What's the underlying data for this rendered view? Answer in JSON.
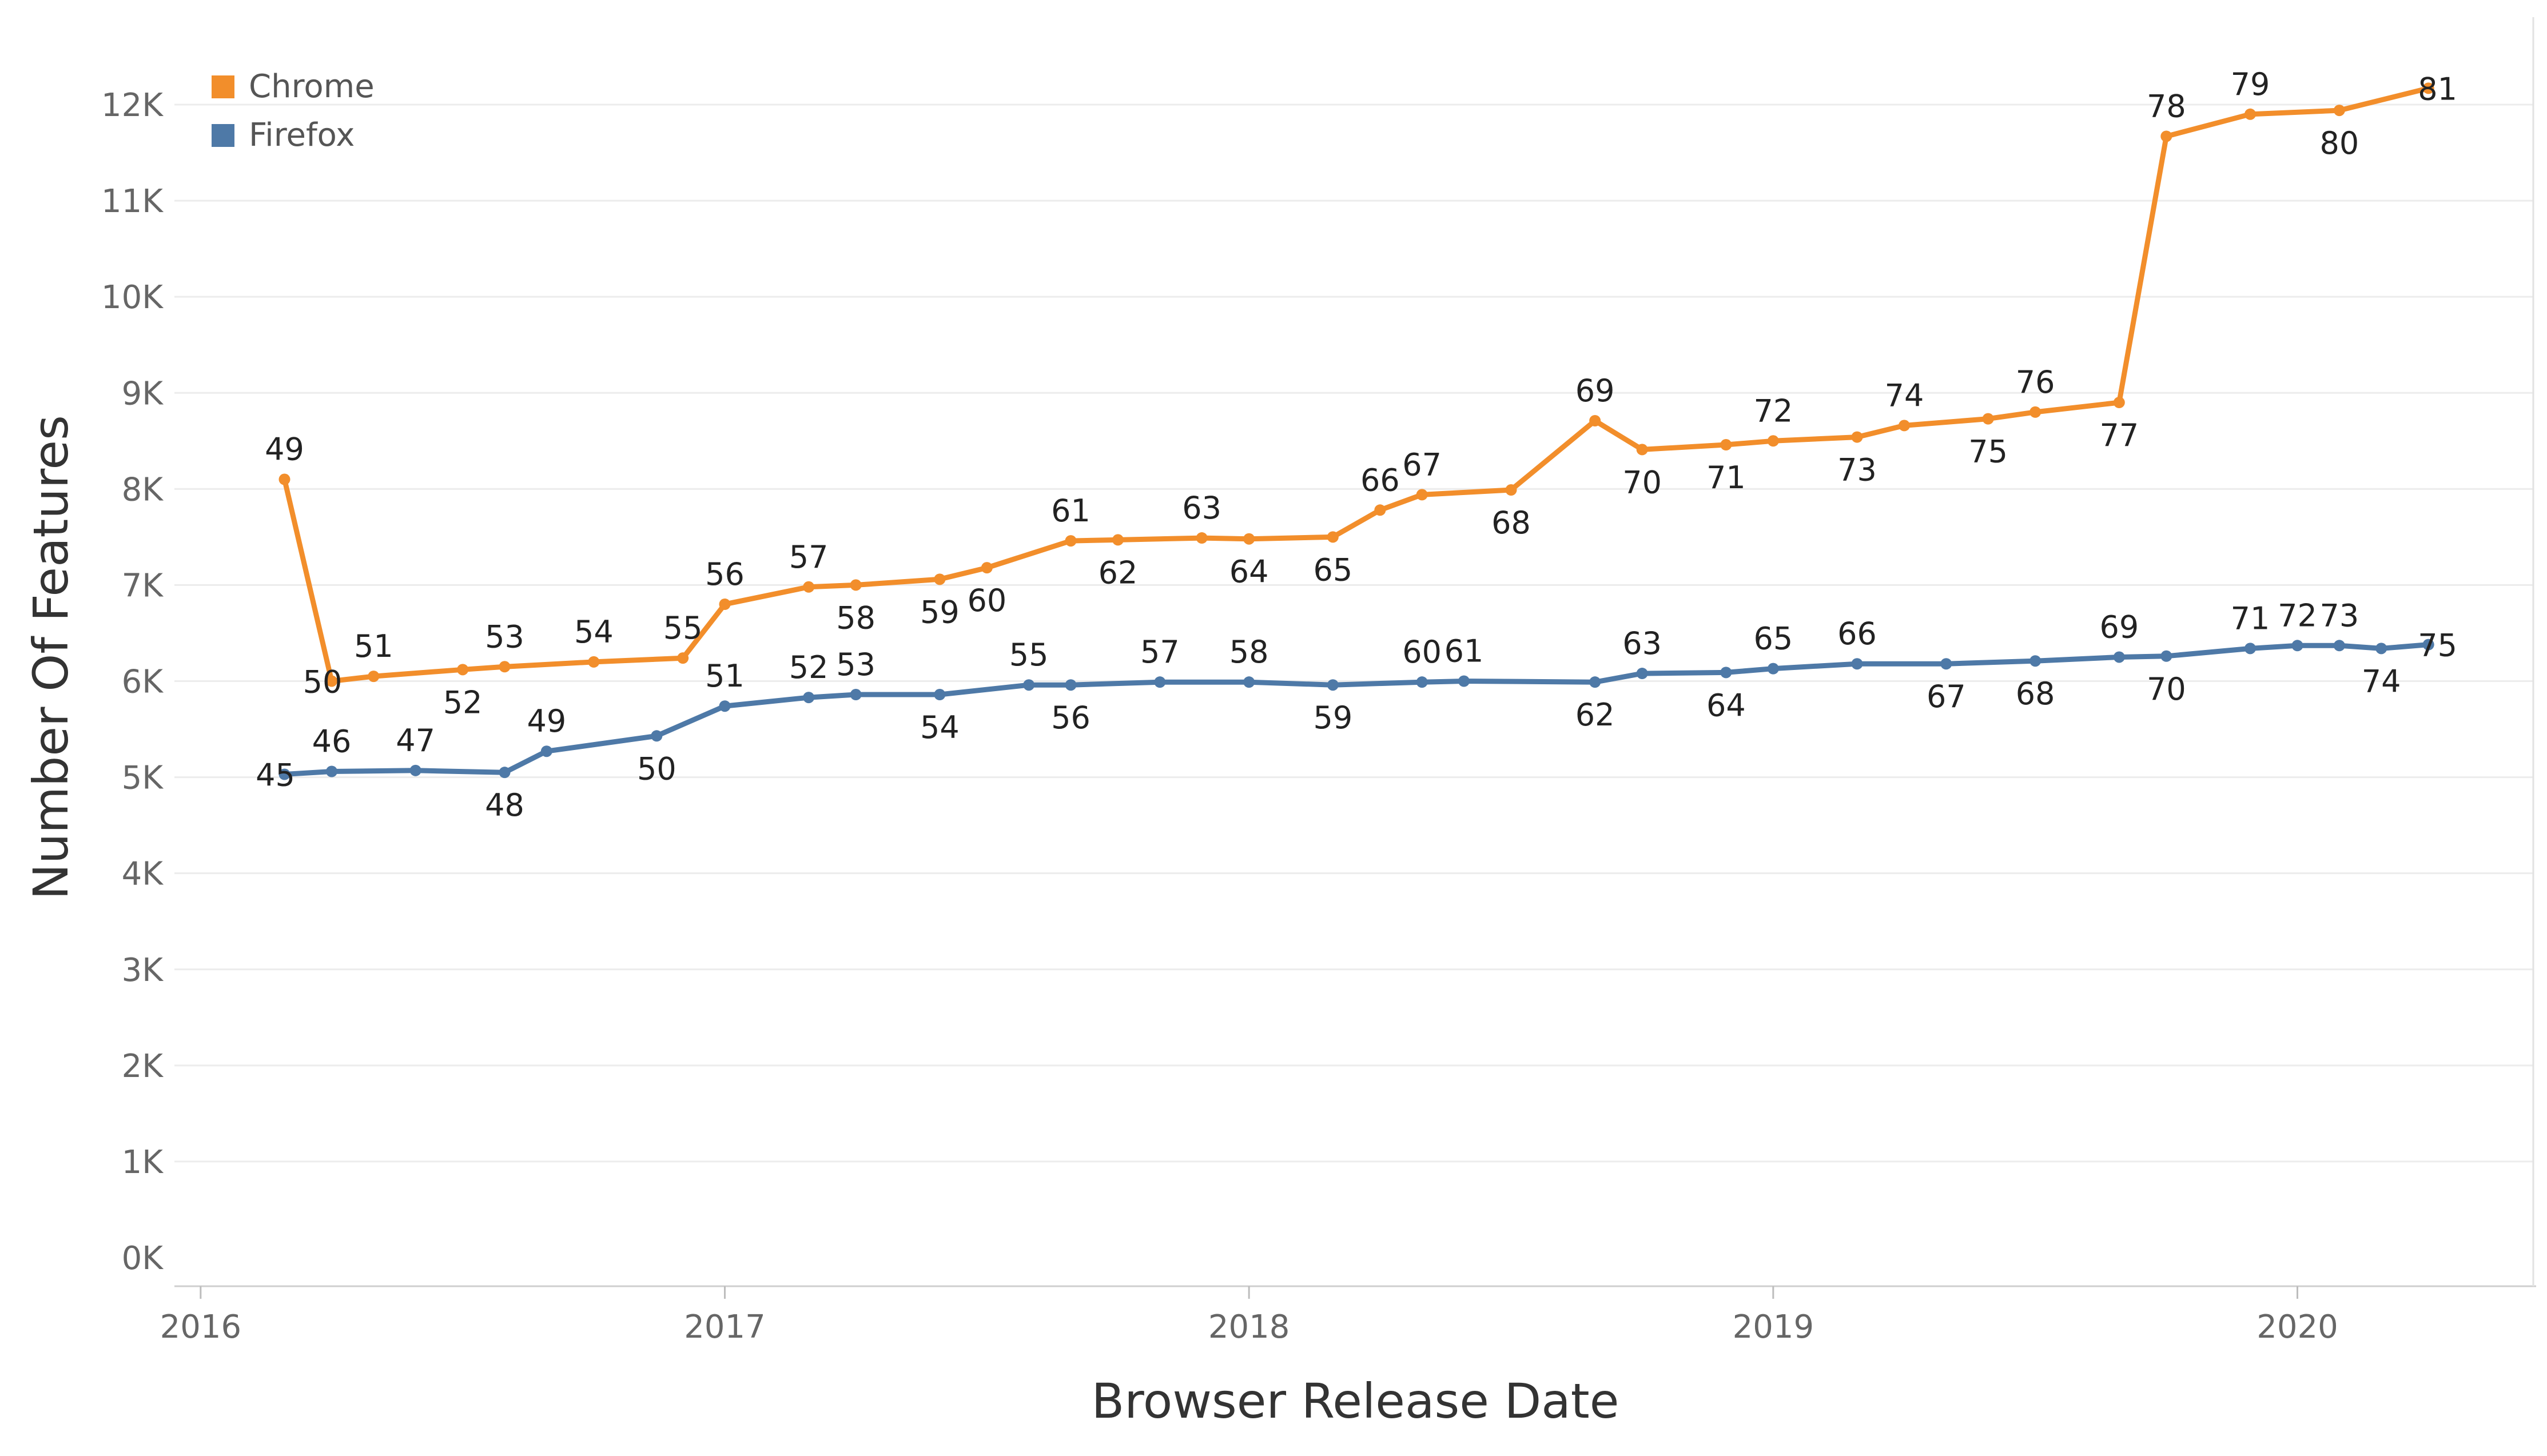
{
  "chart_data": {
    "type": "line",
    "xlabel": "Browser Release Date",
    "ylabel": "Number Of Features",
    "x_axis": {
      "min": 2015.95,
      "max": 2020.45,
      "ticks": [
        2016,
        2017,
        2018,
        2019,
        2020
      ]
    },
    "y_axis": {
      "min": 0,
      "max": 12600,
      "ticks": [
        0,
        1000,
        2000,
        3000,
        4000,
        5000,
        6000,
        7000,
        8000,
        9000,
        10000,
        11000,
        12000
      ],
      "tick_labels": [
        "0K",
        "1K",
        "2K",
        "3K",
        "4K",
        "5K",
        "6K",
        "7K",
        "8K",
        "9K",
        "10K",
        "11K",
        "12K"
      ]
    },
    "grid": true,
    "legend": {
      "placement": "top-left"
    },
    "series": [
      {
        "name": "Chrome",
        "color": "#F28E2B",
        "points": [
          {
            "x": 2016.16,
            "y": 8100,
            "label": "49",
            "pos": "above"
          },
          {
            "x": 2016.25,
            "y": 6000,
            "label": "50",
            "pos": "left"
          },
          {
            "x": 2016.33,
            "y": 6050,
            "label": "51",
            "pos": "above"
          },
          {
            "x": 2016.5,
            "y": 6120,
            "label": "52",
            "pos": "below"
          },
          {
            "x": 2016.58,
            "y": 6150,
            "label": "53",
            "pos": "above"
          },
          {
            "x": 2016.75,
            "y": 6200,
            "label": "54",
            "pos": "above"
          },
          {
            "x": 2016.92,
            "y": 6240,
            "label": "55",
            "pos": "above"
          },
          {
            "x": 2017.0,
            "y": 6800,
            "label": "56",
            "pos": "above"
          },
          {
            "x": 2017.16,
            "y": 6980,
            "label": "57",
            "pos": "above"
          },
          {
            "x": 2017.25,
            "y": 7000,
            "label": "58",
            "pos": "below"
          },
          {
            "x": 2017.41,
            "y": 7060,
            "label": "59",
            "pos": "below"
          },
          {
            "x": 2017.5,
            "y": 7180,
            "label": "60",
            "pos": "below"
          },
          {
            "x": 2017.66,
            "y": 7460,
            "label": "61",
            "pos": "above"
          },
          {
            "x": 2017.75,
            "y": 7470,
            "label": "62",
            "pos": "below"
          },
          {
            "x": 2017.91,
            "y": 7490,
            "label": "63",
            "pos": "above"
          },
          {
            "x": 2018.0,
            "y": 7480,
            "label": "64",
            "pos": "below"
          },
          {
            "x": 2018.16,
            "y": 7500,
            "label": "65",
            "pos": "below"
          },
          {
            "x": 2018.25,
            "y": 7780,
            "label": "66",
            "pos": "above"
          },
          {
            "x": 2018.33,
            "y": 7940,
            "label": "67",
            "pos": "above"
          },
          {
            "x": 2018.5,
            "y": 7990,
            "label": "68",
            "pos": "below"
          },
          {
            "x": 2018.66,
            "y": 8710,
            "label": "69",
            "pos": "above"
          },
          {
            "x": 2018.75,
            "y": 8410,
            "label": "70",
            "pos": "below"
          },
          {
            "x": 2018.91,
            "y": 8460,
            "label": "71",
            "pos": "below"
          },
          {
            "x": 2019.0,
            "y": 8500,
            "label": "72",
            "pos": "above"
          },
          {
            "x": 2019.16,
            "y": 8540,
            "label": "73",
            "pos": "below"
          },
          {
            "x": 2019.25,
            "y": 8660,
            "label": "74",
            "pos": "above"
          },
          {
            "x": 2019.41,
            "y": 8730,
            "label": "75",
            "pos": "below"
          },
          {
            "x": 2019.5,
            "y": 8800,
            "label": "76",
            "pos": "above"
          },
          {
            "x": 2019.66,
            "y": 8900,
            "label": "77",
            "pos": "below"
          },
          {
            "x": 2019.75,
            "y": 11670,
            "label": "78",
            "pos": "above"
          },
          {
            "x": 2019.91,
            "y": 11900,
            "label": "79",
            "pos": "above"
          },
          {
            "x": 2020.08,
            "y": 11940,
            "label": "80",
            "pos": "below"
          },
          {
            "x": 2020.25,
            "y": 12170,
            "label": "81",
            "pos": "right"
          }
        ]
      },
      {
        "name": "Firefox",
        "color": "#4E79A7",
        "points": [
          {
            "x": 2016.16,
            "y": 5030,
            "label": "45",
            "pos": "left"
          },
          {
            "x": 2016.25,
            "y": 5060,
            "label": "46",
            "pos": "above"
          },
          {
            "x": 2016.41,
            "y": 5070,
            "label": "47",
            "pos": "above"
          },
          {
            "x": 2016.58,
            "y": 5050,
            "label": "48",
            "pos": "below"
          },
          {
            "x": 2016.66,
            "y": 5270,
            "label": "49",
            "pos": "above"
          },
          {
            "x": 2016.87,
            "y": 5430,
            "label": "50",
            "pos": "below"
          },
          {
            "x": 2017.0,
            "y": 5740,
            "label": "51",
            "pos": "above"
          },
          {
            "x": 2017.16,
            "y": 5830,
            "label": "52",
            "pos": "above"
          },
          {
            "x": 2017.25,
            "y": 5860,
            "label": "53",
            "pos": "above"
          },
          {
            "x": 2017.41,
            "y": 5860,
            "label": "54",
            "pos": "below"
          },
          {
            "x": 2017.58,
            "y": 5960,
            "label": "55",
            "pos": "above"
          },
          {
            "x": 2017.66,
            "y": 5960,
            "label": "56",
            "pos": "below"
          },
          {
            "x": 2017.83,
            "y": 5990,
            "label": "57",
            "pos": "above"
          },
          {
            "x": 2018.0,
            "y": 5990,
            "label": "58",
            "pos": "above"
          },
          {
            "x": 2018.16,
            "y": 5960,
            "label": "59",
            "pos": "below"
          },
          {
            "x": 2018.33,
            "y": 5990,
            "label": "60",
            "pos": "above"
          },
          {
            "x": 2018.41,
            "y": 6000,
            "label": "61",
            "pos": "above"
          },
          {
            "x": 2018.66,
            "y": 5990,
            "label": "62",
            "pos": "below"
          },
          {
            "x": 2018.75,
            "y": 6080,
            "label": "63",
            "pos": "above"
          },
          {
            "x": 2018.91,
            "y": 6090,
            "label": "64",
            "pos": "below"
          },
          {
            "x": 2019.0,
            "y": 6130,
            "label": "65",
            "pos": "above"
          },
          {
            "x": 2019.16,
            "y": 6180,
            "label": "66",
            "pos": "above"
          },
          {
            "x": 2019.33,
            "y": 6180,
            "label": "67",
            "pos": "below"
          },
          {
            "x": 2019.5,
            "y": 6210,
            "label": "68",
            "pos": "below"
          },
          {
            "x": 2019.66,
            "y": 6250,
            "label": "69",
            "pos": "above"
          },
          {
            "x": 2019.75,
            "y": 6260,
            "label": "70",
            "pos": "below"
          },
          {
            "x": 2019.91,
            "y": 6340,
            "label": "71",
            "pos": "above"
          },
          {
            "x": 2020.0,
            "y": 6370,
            "label": "72",
            "pos": "above"
          },
          {
            "x": 2020.08,
            "y": 6370,
            "label": "73",
            "pos": "above"
          },
          {
            "x": 2020.16,
            "y": 6340,
            "label": "74",
            "pos": "below"
          },
          {
            "x": 2020.25,
            "y": 6380,
            "label": "75",
            "pos": "right"
          }
        ]
      }
    ]
  }
}
